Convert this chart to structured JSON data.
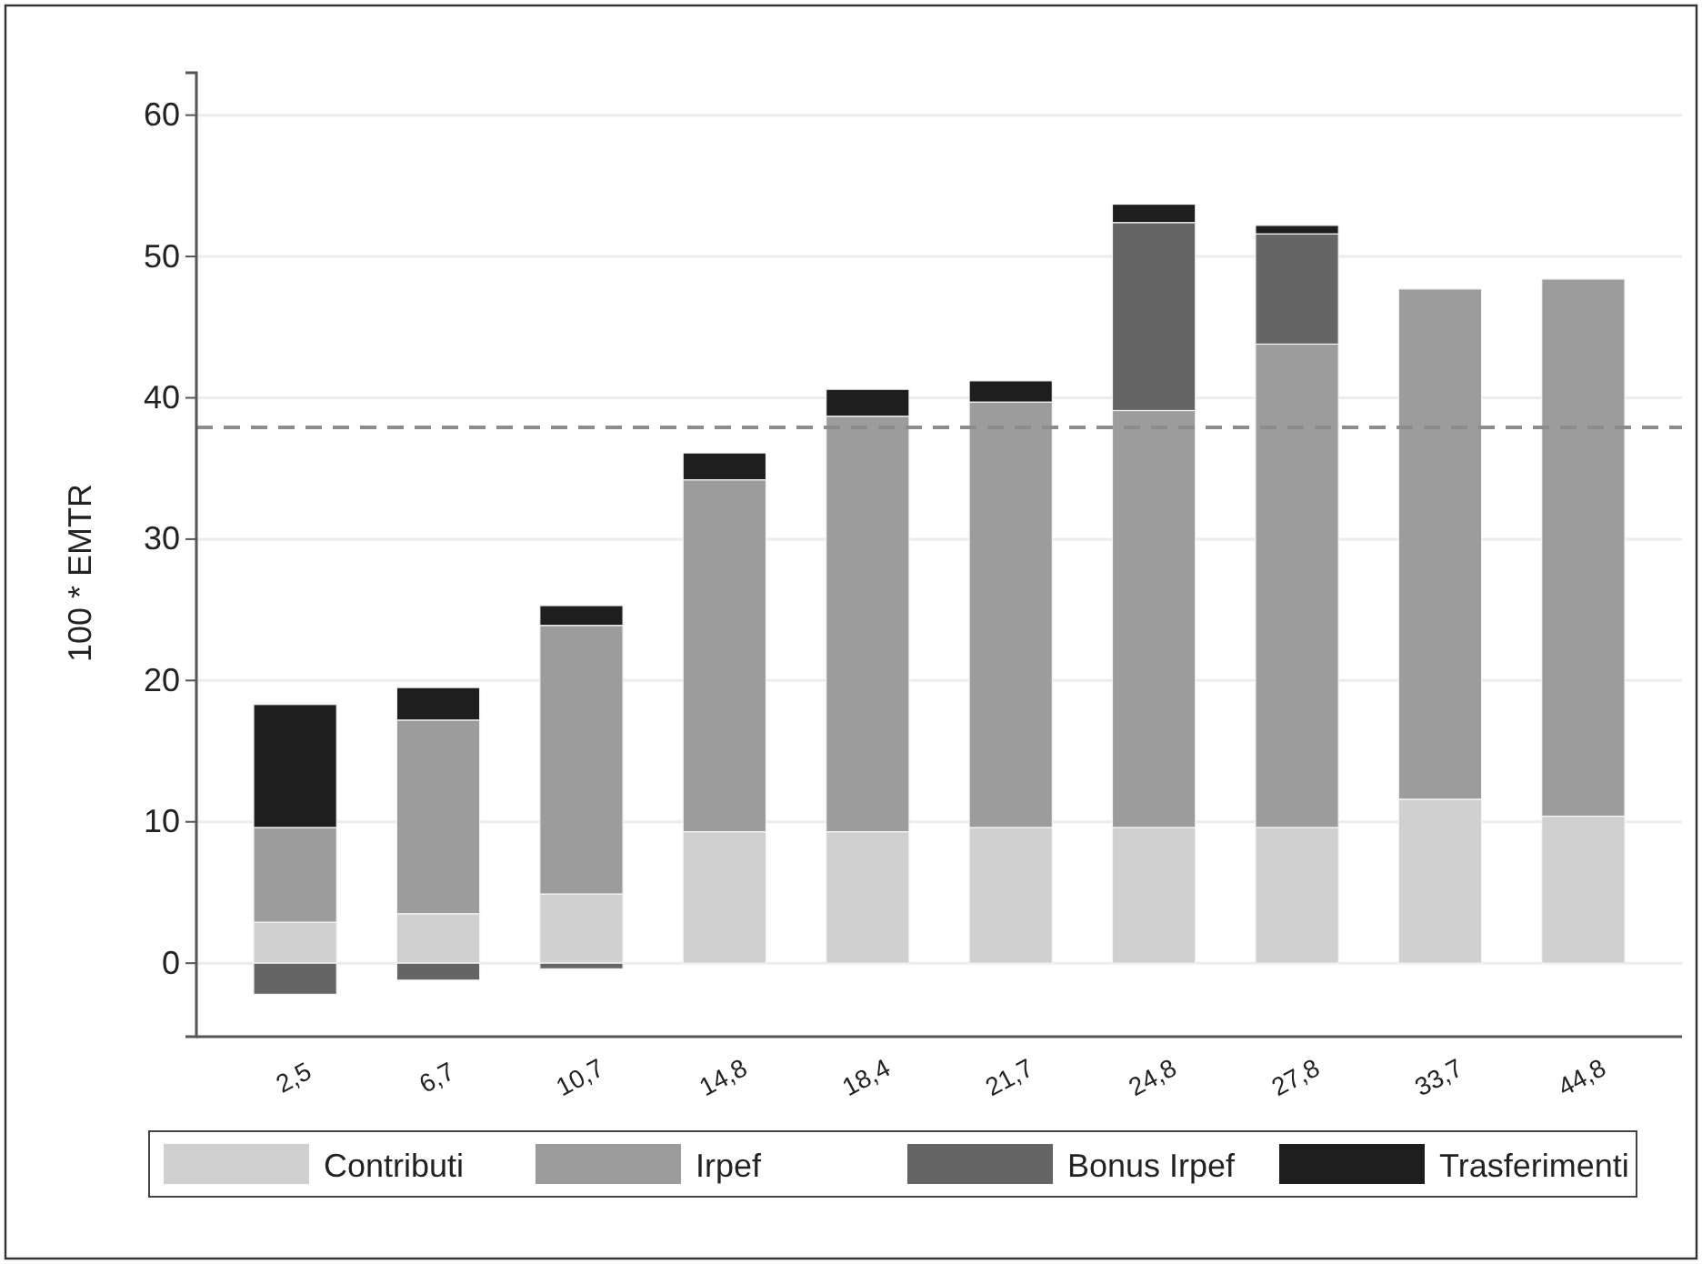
{
  "chart_data": {
    "type": "bar",
    "stacked": true,
    "ylabel": "100 * EMTR",
    "categories": [
      "2,5",
      "6,7",
      "10,7",
      "14,8",
      "18,4",
      "21,7",
      "24,8",
      "27,8",
      "33,7",
      "44,8"
    ],
    "series": [
      {
        "name": "Contributi",
        "color": "#d0d0d0",
        "values": [
          2.9,
          3.5,
          4.9,
          9.3,
          9.3,
          9.6,
          9.6,
          9.6,
          11.6,
          10.4
        ]
      },
      {
        "name": "Irpef",
        "color": "#9c9c9c",
        "values": [
          6.7,
          13.7,
          19.0,
          24.9,
          29.4,
          30.1,
          29.5,
          34.2,
          36.1,
          38.0
        ]
      },
      {
        "name": "Bonus Irpef",
        "color": "#656565",
        "values": [
          -2.2,
          -1.2,
          -0.4,
          null,
          null,
          null,
          13.3,
          7.8,
          null,
          null
        ]
      },
      {
        "name": "Trasferimenti",
        "color": "#1e1e1e",
        "values": [
          8.7,
          2.3,
          1.4,
          1.9,
          1.9,
          1.5,
          1.3,
          0.6,
          null,
          null
        ]
      }
    ],
    "ylim": [
      -5.2,
      63
    ],
    "yticks": [
      0,
      10,
      20,
      30,
      40,
      50,
      60
    ],
    "grid": "y",
    "legend": "bottom",
    "ref_lines": [
      {
        "axis": "y",
        "value": 37.9,
        "color": "#8c8c8c",
        "line_style": "dashed"
      }
    ]
  }
}
